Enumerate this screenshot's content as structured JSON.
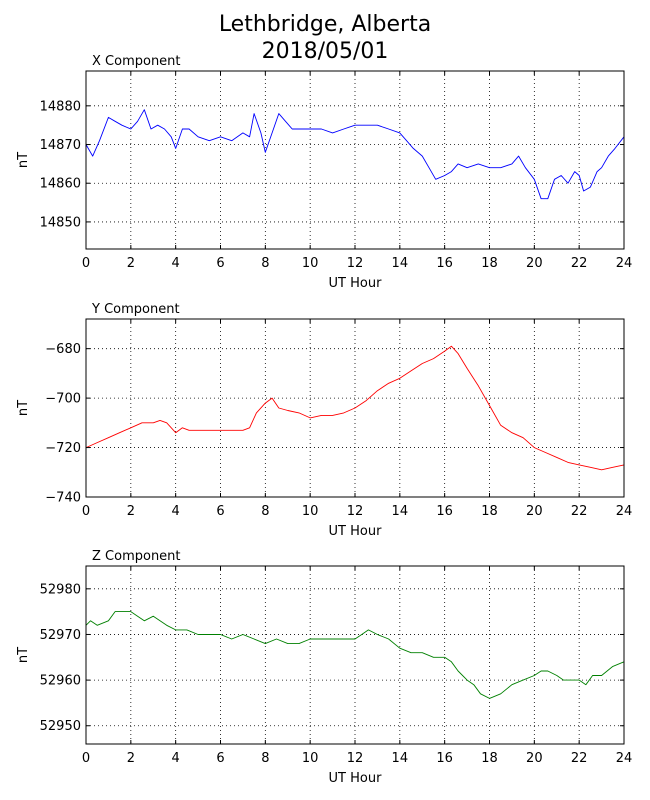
{
  "page": {
    "title_line1": "Lethbridge, Alberta",
    "title_line2": "2018/05/01"
  },
  "chart_data": [
    {
      "type": "line",
      "panel_title": "X Component",
      "xlabel": "UT Hour",
      "ylabel": "nT",
      "xlim": [
        0,
        24
      ],
      "ylim": [
        14843,
        14889
      ],
      "xticks": [
        0,
        2,
        4,
        6,
        8,
        10,
        12,
        14,
        16,
        18,
        20,
        22,
        24
      ],
      "yticks": [
        14850,
        14860,
        14870,
        14880
      ],
      "grid": true,
      "color": "#0000ff",
      "x": [
        0,
        0.3,
        0.6,
        1,
        1.3,
        1.6,
        2,
        2.3,
        2.6,
        2.9,
        3.2,
        3.5,
        3.8,
        4,
        4.3,
        4.6,
        5,
        5.5,
        6,
        6.5,
        7,
        7.3,
        7.5,
        7.8,
        8,
        8.3,
        8.6,
        8.9,
        9.2,
        9.6,
        10,
        10.5,
        11,
        11.5,
        12,
        12.5,
        13,
        13.5,
        14,
        14.3,
        14.6,
        15,
        15.3,
        15.6,
        16,
        16.3,
        16.6,
        17,
        17.5,
        18,
        18.5,
        19,
        19.3,
        19.6,
        20,
        20.3,
        20.6,
        20.9,
        21.2,
        21.5,
        21.8,
        22,
        22.2,
        22.5,
        22.8,
        23,
        23.3,
        23.6,
        24
      ],
      "y": [
        14870,
        14867,
        14871,
        14877,
        14876,
        14875,
        14874,
        14876,
        14879,
        14874,
        14875,
        14874,
        14872,
        14869,
        14874,
        14874,
        14872,
        14871,
        14872,
        14871,
        14873,
        14872,
        14878,
        14873,
        14868,
        14873,
        14878,
        14876,
        14874,
        14874,
        14874,
        14874,
        14873,
        14874,
        14875,
        14875,
        14875,
        14874,
        14873,
        14871,
        14869,
        14867,
        14864,
        14861,
        14862,
        14863,
        14865,
        14864,
        14865,
        14864,
        14864,
        14865,
        14867,
        14864,
        14861,
        14856,
        14856,
        14861,
        14862,
        14860,
        14863,
        14862,
        14858,
        14859,
        14863,
        14864,
        14867,
        14869,
        14872
      ]
    },
    {
      "type": "line",
      "panel_title": "Y Component",
      "xlabel": "UT Hour",
      "ylabel": "nT",
      "xlim": [
        0,
        24
      ],
      "ylim": [
        -740,
        -668
      ],
      "xticks": [
        0,
        2,
        4,
        6,
        8,
        10,
        12,
        14,
        16,
        18,
        20,
        22,
        24
      ],
      "yticks": [
        -740,
        -720,
        -700,
        -680
      ],
      "grid": true,
      "color": "#ff0000",
      "x": [
        0,
        0.5,
        1,
        1.5,
        2,
        2.5,
        3,
        3.3,
        3.6,
        4,
        4.3,
        4.6,
        5,
        6,
        7,
        7.3,
        7.6,
        8,
        8.3,
        8.6,
        9,
        9.5,
        10,
        10.5,
        11,
        11.5,
        12,
        12.5,
        13,
        13.5,
        14,
        14.5,
        15,
        15.5,
        16,
        16.3,
        16.6,
        17,
        17.5,
        18,
        18.5,
        19,
        19.5,
        20,
        20.5,
        21,
        21.5,
        22,
        22.5,
        23,
        23.5,
        24
      ],
      "y": [
        -720,
        -718,
        -716,
        -714,
        -712,
        -710,
        -710,
        -709,
        -710,
        -714,
        -712,
        -713,
        -713,
        -713,
        -713,
        -712,
        -706,
        -702,
        -700,
        -704,
        -705,
        -706,
        -708,
        -707,
        -707,
        -706,
        -704,
        -701,
        -697,
        -694,
        -692,
        -689,
        -686,
        -684,
        -681,
        -679,
        -682,
        -688,
        -695,
        -703,
        -711,
        -714,
        -716,
        -720,
        -722,
        -724,
        -726,
        -727,
        -728,
        -729,
        -728,
        -727
      ]
    },
    {
      "type": "line",
      "panel_title": "Z Component",
      "xlabel": "UT Hour",
      "ylabel": "nT",
      "xlim": [
        0,
        24
      ],
      "ylim": [
        52946,
        52985
      ],
      "xticks": [
        0,
        2,
        4,
        6,
        8,
        10,
        12,
        14,
        16,
        18,
        20,
        22,
        24
      ],
      "yticks": [
        52950,
        52960,
        52970,
        52980
      ],
      "grid": true,
      "color": "#008000",
      "x": [
        0,
        0.2,
        0.5,
        1,
        1.3,
        1.6,
        2,
        2.3,
        2.6,
        3,
        3.3,
        3.6,
        4,
        4.5,
        5,
        5.5,
        6,
        6.5,
        7,
        7.5,
        8,
        8.5,
        9,
        9.5,
        10,
        10.5,
        11,
        11.5,
        12,
        12.3,
        12.6,
        13,
        13.5,
        14,
        14.5,
        15,
        15.5,
        16,
        16.3,
        16.6,
        17,
        17.3,
        17.6,
        18,
        18.5,
        19,
        19.5,
        20,
        20.3,
        20.6,
        21,
        21.3,
        21.6,
        22,
        22.3,
        22.6,
        23,
        23.5,
        24
      ],
      "y": [
        52972,
        52973,
        52972,
        52973,
        52975,
        52975,
        52975,
        52974,
        52973,
        52974,
        52973,
        52972,
        52971,
        52971,
        52970,
        52970,
        52970,
        52969,
        52970,
        52969,
        52968,
        52969,
        52968,
        52968,
        52969,
        52969,
        52969,
        52969,
        52969,
        52970,
        52971,
        52970,
        52969,
        52967,
        52966,
        52966,
        52965,
        52965,
        52964,
        52962,
        52960,
        52959,
        52957,
        52956,
        52957,
        52959,
        52960,
        52961,
        52962,
        52962,
        52961,
        52960,
        52960,
        52960,
        52959,
        52961,
        52961,
        52963,
        52964
      ]
    }
  ]
}
